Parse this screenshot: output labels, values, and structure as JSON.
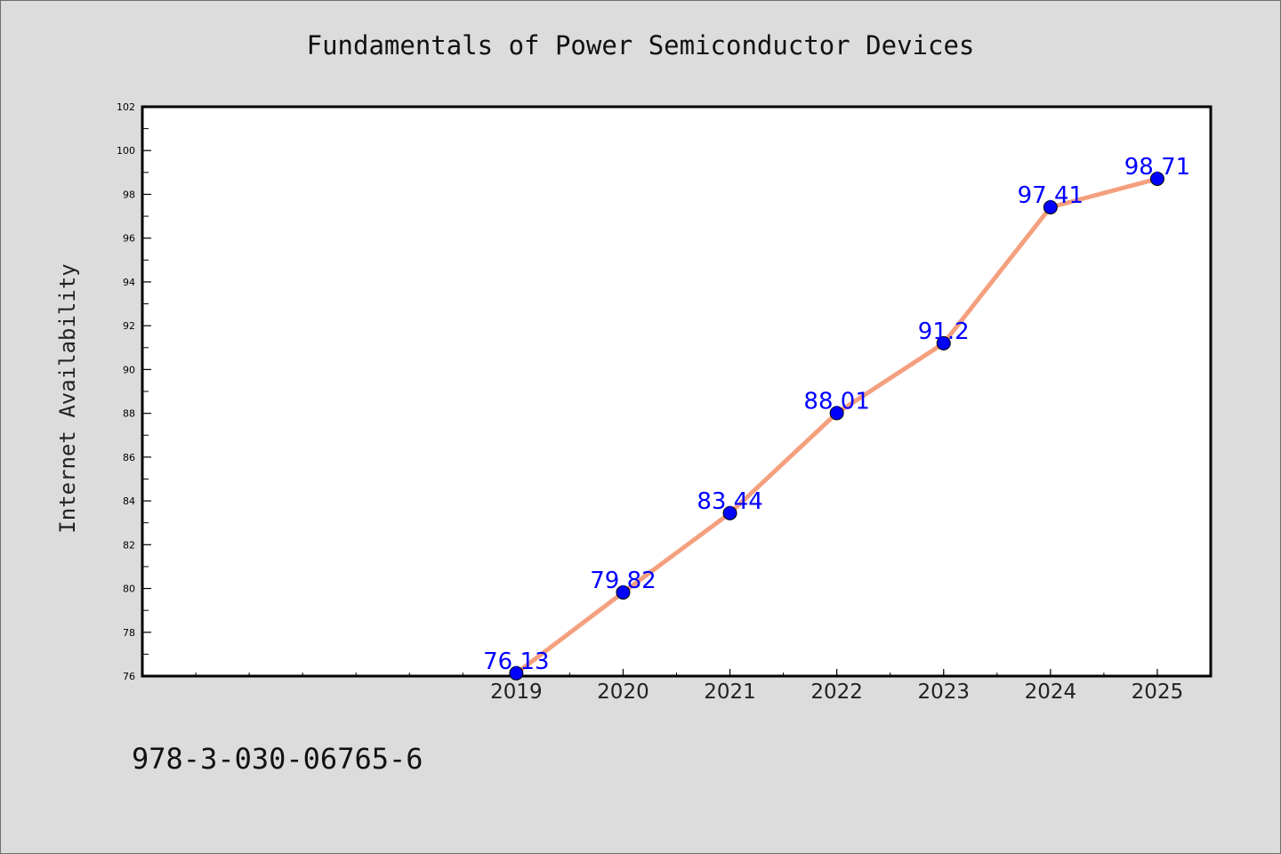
{
  "header": {
    "title": "Fundamentals of Power Semiconductor Devices"
  },
  "footer": {
    "isbn": "978-3-030-06765-6"
  },
  "chart_data": {
    "type": "line",
    "title": "Fundamentals of Power Semiconductor Devices",
    "xlabel": "",
    "ylabel": "Internet Availability",
    "x": [
      2019,
      2020,
      2021,
      2022,
      2023,
      2024,
      2025
    ],
    "x_tick_labels": [
      "2019",
      "2020",
      "2021",
      "2022",
      "2023",
      "2024",
      "2025"
    ],
    "xlim": [
      2015.5,
      2025.5
    ],
    "y_ticks": [
      76,
      78,
      80,
      82,
      84,
      86,
      88,
      90,
      92,
      94,
      96,
      98,
      100,
      102
    ],
    "ylim": [
      76,
      102
    ],
    "series": [
      {
        "values": [
          76.13,
          79.82,
          83.44,
          88.01,
          91.2,
          97.41,
          98.71
        ],
        "labels": [
          "76.13",
          "79.82",
          "83.44",
          "88.01",
          "91.2",
          "97.41",
          "98.71"
        ]
      }
    ],
    "grid": false,
    "legend": "none",
    "colors": {
      "line": "#f4a07e",
      "marker": "#0000ff",
      "data_label": "#0000ff",
      "background": "#dcdcdc",
      "plot_background": "#ffffff"
    }
  }
}
